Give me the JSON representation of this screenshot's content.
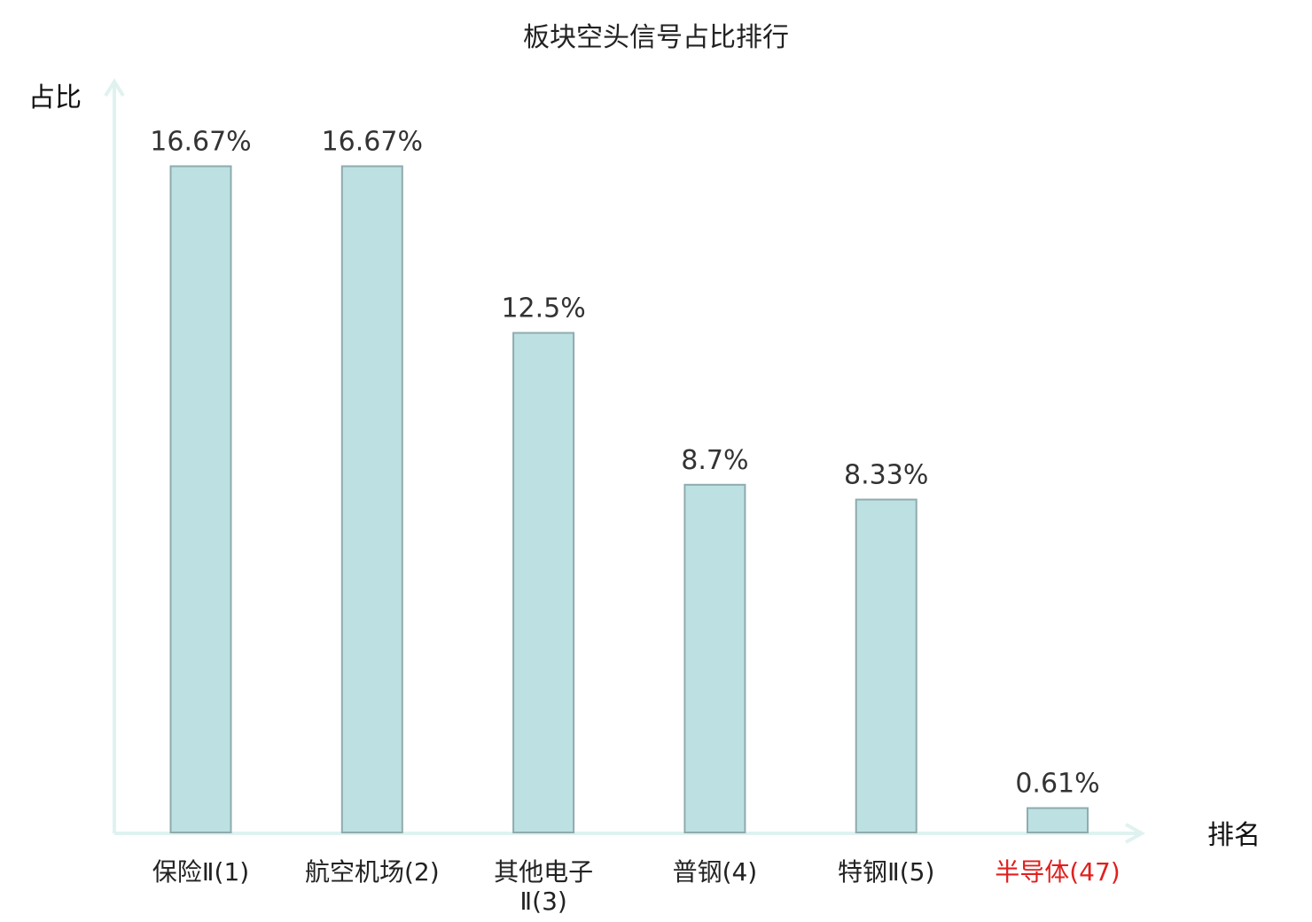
{
  "chart_data": {
    "type": "bar",
    "title": "板块空头信号占比排行",
    "xlabel": "排名",
    "ylabel": "占比",
    "categories": [
      [
        "保险Ⅱ(1)"
      ],
      [
        "航空机场(2)"
      ],
      [
        "其他电子",
        "Ⅱ(3)"
      ],
      [
        "普钢(4)"
      ],
      [
        "特钢Ⅱ(5)"
      ],
      [
        "半导体(47)"
      ]
    ],
    "values": [
      16.67,
      16.67,
      12.5,
      8.7,
      8.33,
      0.61
    ],
    "value_labels": [
      "16.67%",
      "16.67%",
      "12.5%",
      "8.7%",
      "8.33%",
      "0.61%"
    ],
    "highlight_index": 5,
    "ylim": [
      0,
      18.5
    ],
    "grid": false,
    "legend": "none",
    "colors": {
      "bar_fill": "#bde1e3",
      "bar_stroke": "#8fabad",
      "axis": "#dff2ef",
      "text": "#222222",
      "value_text": "#333333",
      "highlight": "#e0201e"
    }
  }
}
